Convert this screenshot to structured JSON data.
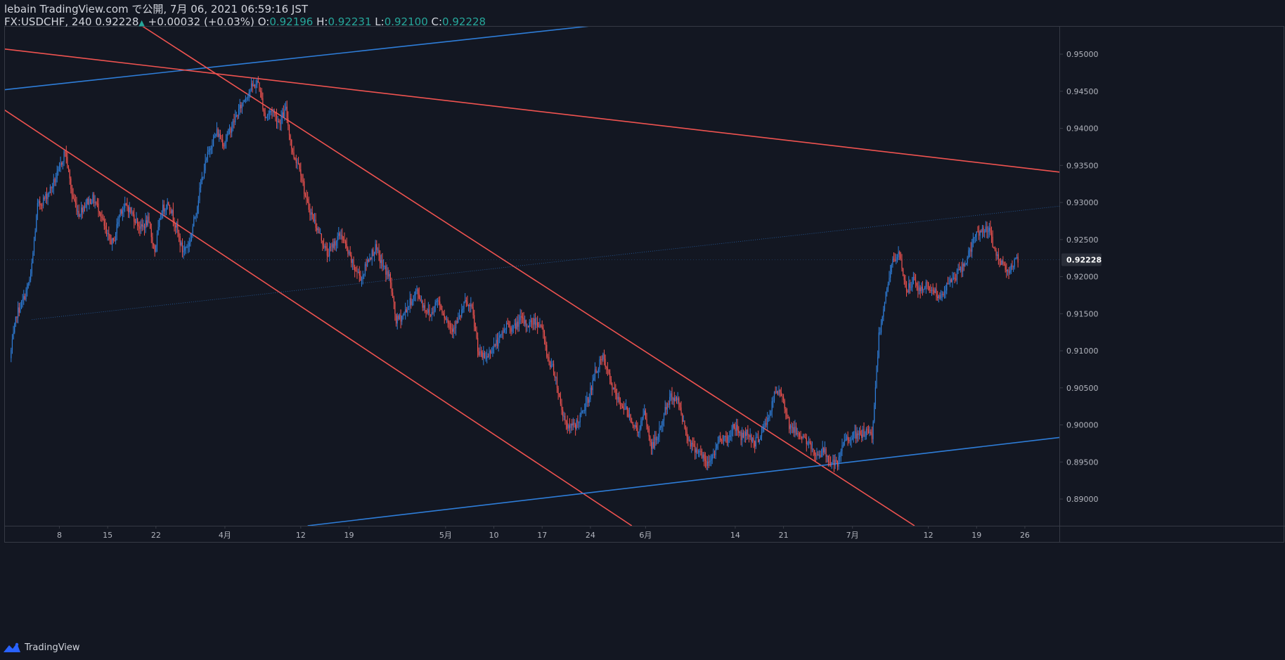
{
  "header": {
    "published": "lebain TradingView.com で公開, 7月 06, 2021 06:59:16 JST",
    "symbol": "FX:USDCHF, 240",
    "last": "0.92228",
    "change_arrow": "▲",
    "change": "+0.00032 (+0.03%)",
    "o_label": "O:",
    "o_value": "0.92196",
    "h_label": "H:",
    "h_value": "0.92231",
    "l_label": "L:",
    "l_value": "0.92100",
    "c_label": "C:",
    "c_value": "0.92228"
  },
  "footer": {
    "brand": "TradingView",
    "logo_icon": "tradingview-logo-icon"
  },
  "colors": {
    "background": "#131722",
    "up": "#2e7dd8",
    "down": "#ef5350",
    "axis_text": "#b2b5be",
    "border": "#363a45",
    "price_label_bg": "#2a2e39"
  },
  "chart_data": {
    "type": "candlestick",
    "timeframe": "240",
    "ylim": [
      0.8864,
      0.9538
    ],
    "y_ticks": [
      "0.95000",
      "0.94500",
      "0.94000",
      "0.93500",
      "0.93000",
      "0.92500",
      "0.92000",
      "0.91500",
      "0.91000",
      "0.90500",
      "0.90000",
      "0.89500",
      "0.89000"
    ],
    "current_price": "0.92228",
    "x_ticks": [
      "8",
      "15",
      "22",
      "4月",
      "12",
      "19",
      "5月",
      "10",
      "17",
      "24",
      "6月",
      "14",
      "21",
      "7月",
      "12",
      "19",
      "26"
    ],
    "x_tick_dates": [
      "2021-03-08",
      "2021-03-15",
      "2021-03-22",
      "2021-04-01",
      "2021-04-12",
      "2021-04-19",
      "2021-05-03",
      "2021-05-10",
      "2021-05-17",
      "2021-05-24",
      "2021-06-01",
      "2021-06-14",
      "2021-06-21",
      "2021-07-01",
      "2021-07-12",
      "2021-07-19",
      "2021-07-26"
    ],
    "x_range": [
      "2021-02-28",
      "2021-07-31"
    ],
    "price_path": [
      [
        "2021-03-01",
        0.909
      ],
      [
        "2021-03-02",
        0.915
      ],
      [
        "2021-03-03",
        0.917
      ],
      [
        "2021-03-04",
        0.92
      ],
      [
        "2021-03-05",
        0.9295
      ],
      [
        "2021-03-06",
        0.9305
      ],
      [
        "2021-03-07",
        0.932
      ],
      [
        "2021-03-08",
        0.934
      ],
      [
        "2021-03-09",
        0.937
      ],
      [
        "2021-03-10",
        0.931
      ],
      [
        "2021-03-11",
        0.9285
      ],
      [
        "2021-03-12",
        0.93
      ],
      [
        "2021-03-13",
        0.9305
      ],
      [
        "2021-03-14",
        0.929
      ],
      [
        "2021-03-15",
        0.9255
      ],
      [
        "2021-03-16",
        0.9245
      ],
      [
        "2021-03-17",
        0.929
      ],
      [
        "2021-03-18",
        0.9295
      ],
      [
        "2021-03-19",
        0.928
      ],
      [
        "2021-03-20",
        0.9265
      ],
      [
        "2021-03-21",
        0.9275
      ],
      [
        "2021-03-22",
        0.9235
      ],
      [
        "2021-03-23",
        0.929
      ],
      [
        "2021-03-24",
        0.93
      ],
      [
        "2021-03-25",
        0.927
      ],
      [
        "2021-03-26",
        0.9235
      ],
      [
        "2021-03-27",
        0.9245
      ],
      [
        "2021-03-28",
        0.929
      ],
      [
        "2021-03-29",
        0.934
      ],
      [
        "2021-03-30",
        0.9375
      ],
      [
        "2021-03-31",
        0.9395
      ],
      [
        "2021-04-01",
        0.938
      ],
      [
        "2021-04-02",
        0.94
      ],
      [
        "2021-04-03",
        0.942
      ],
      [
        "2021-04-04",
        0.944
      ],
      [
        "2021-04-05",
        0.9455
      ],
      [
        "2021-04-06",
        0.9462
      ],
      [
        "2021-04-07",
        0.9415
      ],
      [
        "2021-04-08",
        0.9425
      ],
      [
        "2021-04-09",
        0.9408
      ],
      [
        "2021-04-10",
        0.9425
      ],
      [
        "2021-04-11",
        0.9365
      ],
      [
        "2021-04-12",
        0.935
      ],
      [
        "2021-04-13",
        0.93
      ],
      [
        "2021-04-14",
        0.9278
      ],
      [
        "2021-04-15",
        0.9255
      ],
      [
        "2021-04-16",
        0.923
      ],
      [
        "2021-04-17",
        0.9245
      ],
      [
        "2021-04-18",
        0.9258
      ],
      [
        "2021-04-19",
        0.9232
      ],
      [
        "2021-04-20",
        0.921
      ],
      [
        "2021-04-21",
        0.9198
      ],
      [
        "2021-04-22",
        0.9225
      ],
      [
        "2021-04-23",
        0.9238
      ],
      [
        "2021-04-24",
        0.9215
      ],
      [
        "2021-04-25",
        0.92
      ],
      [
        "2021-04-26",
        0.914
      ],
      [
        "2021-04-27",
        0.9148
      ],
      [
        "2021-04-28",
        0.9165
      ],
      [
        "2021-04-29",
        0.918
      ],
      [
        "2021-04-30",
        0.916
      ],
      [
        "2021-05-01",
        0.9148
      ],
      [
        "2021-05-02",
        0.917
      ],
      [
        "2021-05-03",
        0.9148
      ],
      [
        "2021-05-04",
        0.913
      ],
      [
        "2021-05-05",
        0.914
      ],
      [
        "2021-05-06",
        0.9165
      ],
      [
        "2021-05-07",
        0.9155
      ],
      [
        "2021-05-08",
        0.9095
      ],
      [
        "2021-05-09",
        0.909
      ],
      [
        "2021-05-10",
        0.9105
      ],
      [
        "2021-05-11",
        0.9115
      ],
      [
        "2021-05-12",
        0.9135
      ],
      [
        "2021-05-13",
        0.913
      ],
      [
        "2021-05-14",
        0.9142
      ],
      [
        "2021-05-15",
        0.9135
      ],
      [
        "2021-05-16",
        0.914
      ],
      [
        "2021-05-17",
        0.9135
      ],
      [
        "2021-05-18",
        0.909
      ],
      [
        "2021-05-19",
        0.907
      ],
      [
        "2021-05-20",
        0.902
      ],
      [
        "2021-05-21",
        0.8995
      ],
      [
        "2021-05-22",
        0.9
      ],
      [
        "2021-05-23",
        0.9015
      ],
      [
        "2021-05-24",
        0.904
      ],
      [
        "2021-05-25",
        0.9075
      ],
      [
        "2021-05-26",
        0.909
      ],
      [
        "2021-05-27",
        0.906
      ],
      [
        "2021-05-28",
        0.9035
      ],
      [
        "2021-05-29",
        0.9025
      ],
      [
        "2021-05-30",
        0.901
      ],
      [
        "2021-05-31",
        0.899
      ],
      [
        "2021-06-01",
        0.9015
      ],
      [
        "2021-06-02",
        0.897
      ],
      [
        "2021-06-03",
        0.8985
      ],
      [
        "2021-06-04",
        0.902
      ],
      [
        "2021-06-05",
        0.904
      ],
      [
        "2021-06-06",
        0.903
      ],
      [
        "2021-06-07",
        0.899
      ],
      [
        "2021-06-08",
        0.897
      ],
      [
        "2021-06-09",
        0.8965
      ],
      [
        "2021-06-10",
        0.8945
      ],
      [
        "2021-06-11",
        0.896
      ],
      [
        "2021-06-12",
        0.8985
      ],
      [
        "2021-06-13",
        0.898
      ],
      [
        "2021-06-14",
        0.9
      ],
      [
        "2021-06-15",
        0.8985
      ],
      [
        "2021-06-16",
        0.899
      ],
      [
        "2021-06-17",
        0.8975
      ],
      [
        "2021-06-18",
        0.899
      ],
      [
        "2021-06-19",
        0.901
      ],
      [
        "2021-06-20",
        0.9045
      ],
      [
        "2021-06-21",
        0.904
      ],
      [
        "2021-06-22",
        0.9
      ],
      [
        "2021-06-23",
        0.899
      ],
      [
        "2021-06-24",
        0.8985
      ],
      [
        "2021-06-25",
        0.897
      ],
      [
        "2021-06-26",
        0.896
      ],
      [
        "2021-06-27",
        0.8965
      ],
      [
        "2021-06-28",
        0.895
      ],
      [
        "2021-06-29",
        0.8945
      ],
      [
        "2021-06-30",
        0.898
      ],
      [
        "2021-07-01",
        0.8985
      ],
      [
        "2021-07-02",
        0.8985
      ],
      [
        "2021-07-03",
        0.899
      ],
      [
        "2021-07-04",
        0.8985
      ],
      [
        "2021-07-05",
        0.912
      ],
      [
        "2021-07-06",
        0.9178
      ],
      [
        "2021-07-07",
        0.922
      ],
      [
        "2021-07-08",
        0.923
      ],
      [
        "2021-07-09",
        0.918
      ],
      [
        "2021-07-10",
        0.9195
      ],
      [
        "2021-07-11",
        0.918
      ],
      [
        "2021-07-12",
        0.919
      ],
      [
        "2021-07-13",
        0.918
      ],
      [
        "2021-07-14",
        0.917
      ],
      [
        "2021-07-15",
        0.919
      ],
      [
        "2021-07-16",
        0.92
      ],
      [
        "2021-07-17",
        0.921
      ],
      [
        "2021-07-18",
        0.923
      ],
      [
        "2021-07-19",
        0.9255
      ],
      [
        "2021-07-20",
        0.9265
      ],
      [
        "2021-07-21",
        0.926
      ],
      [
        "2021-07-22",
        0.923
      ],
      [
        "2021-07-23",
        0.9215
      ],
      [
        "2021-07-24",
        0.921
      ],
      [
        "2021-07-25",
        0.9222
      ]
    ],
    "trendlines": [
      {
        "color": "#2e7dd8",
        "style": "solid",
        "from": [
          "2021-02-28",
          0.9452
        ],
        "to": [
          "2021-05-24",
          0.9538
        ]
      },
      {
        "color": "#ef5350",
        "style": "solid",
        "from": [
          "2021-02-28",
          0.9507
        ],
        "to": [
          "2021-07-31",
          0.9341
        ]
      },
      {
        "color": "#ef5350",
        "style": "solid",
        "from": [
          "2021-03-20",
          0.9538
        ],
        "to": [
          "2021-07-10",
          0.8864
        ]
      },
      {
        "color": "#ef5350",
        "style": "solid",
        "from": [
          "2021-02-28",
          0.9425
        ],
        "to": [
          "2021-05-30",
          0.8864
        ]
      },
      {
        "color": "#2e7dd8",
        "style": "solid",
        "from": [
          "2021-04-13",
          0.8864
        ],
        "to": [
          "2021-07-31",
          0.8983
        ]
      },
      {
        "color": "#2e7dd8",
        "style": "dotted",
        "from": [
          "2021-03-04",
          0.9142
        ],
        "to": [
          "2021-07-31",
          0.9295
        ]
      }
    ]
  }
}
